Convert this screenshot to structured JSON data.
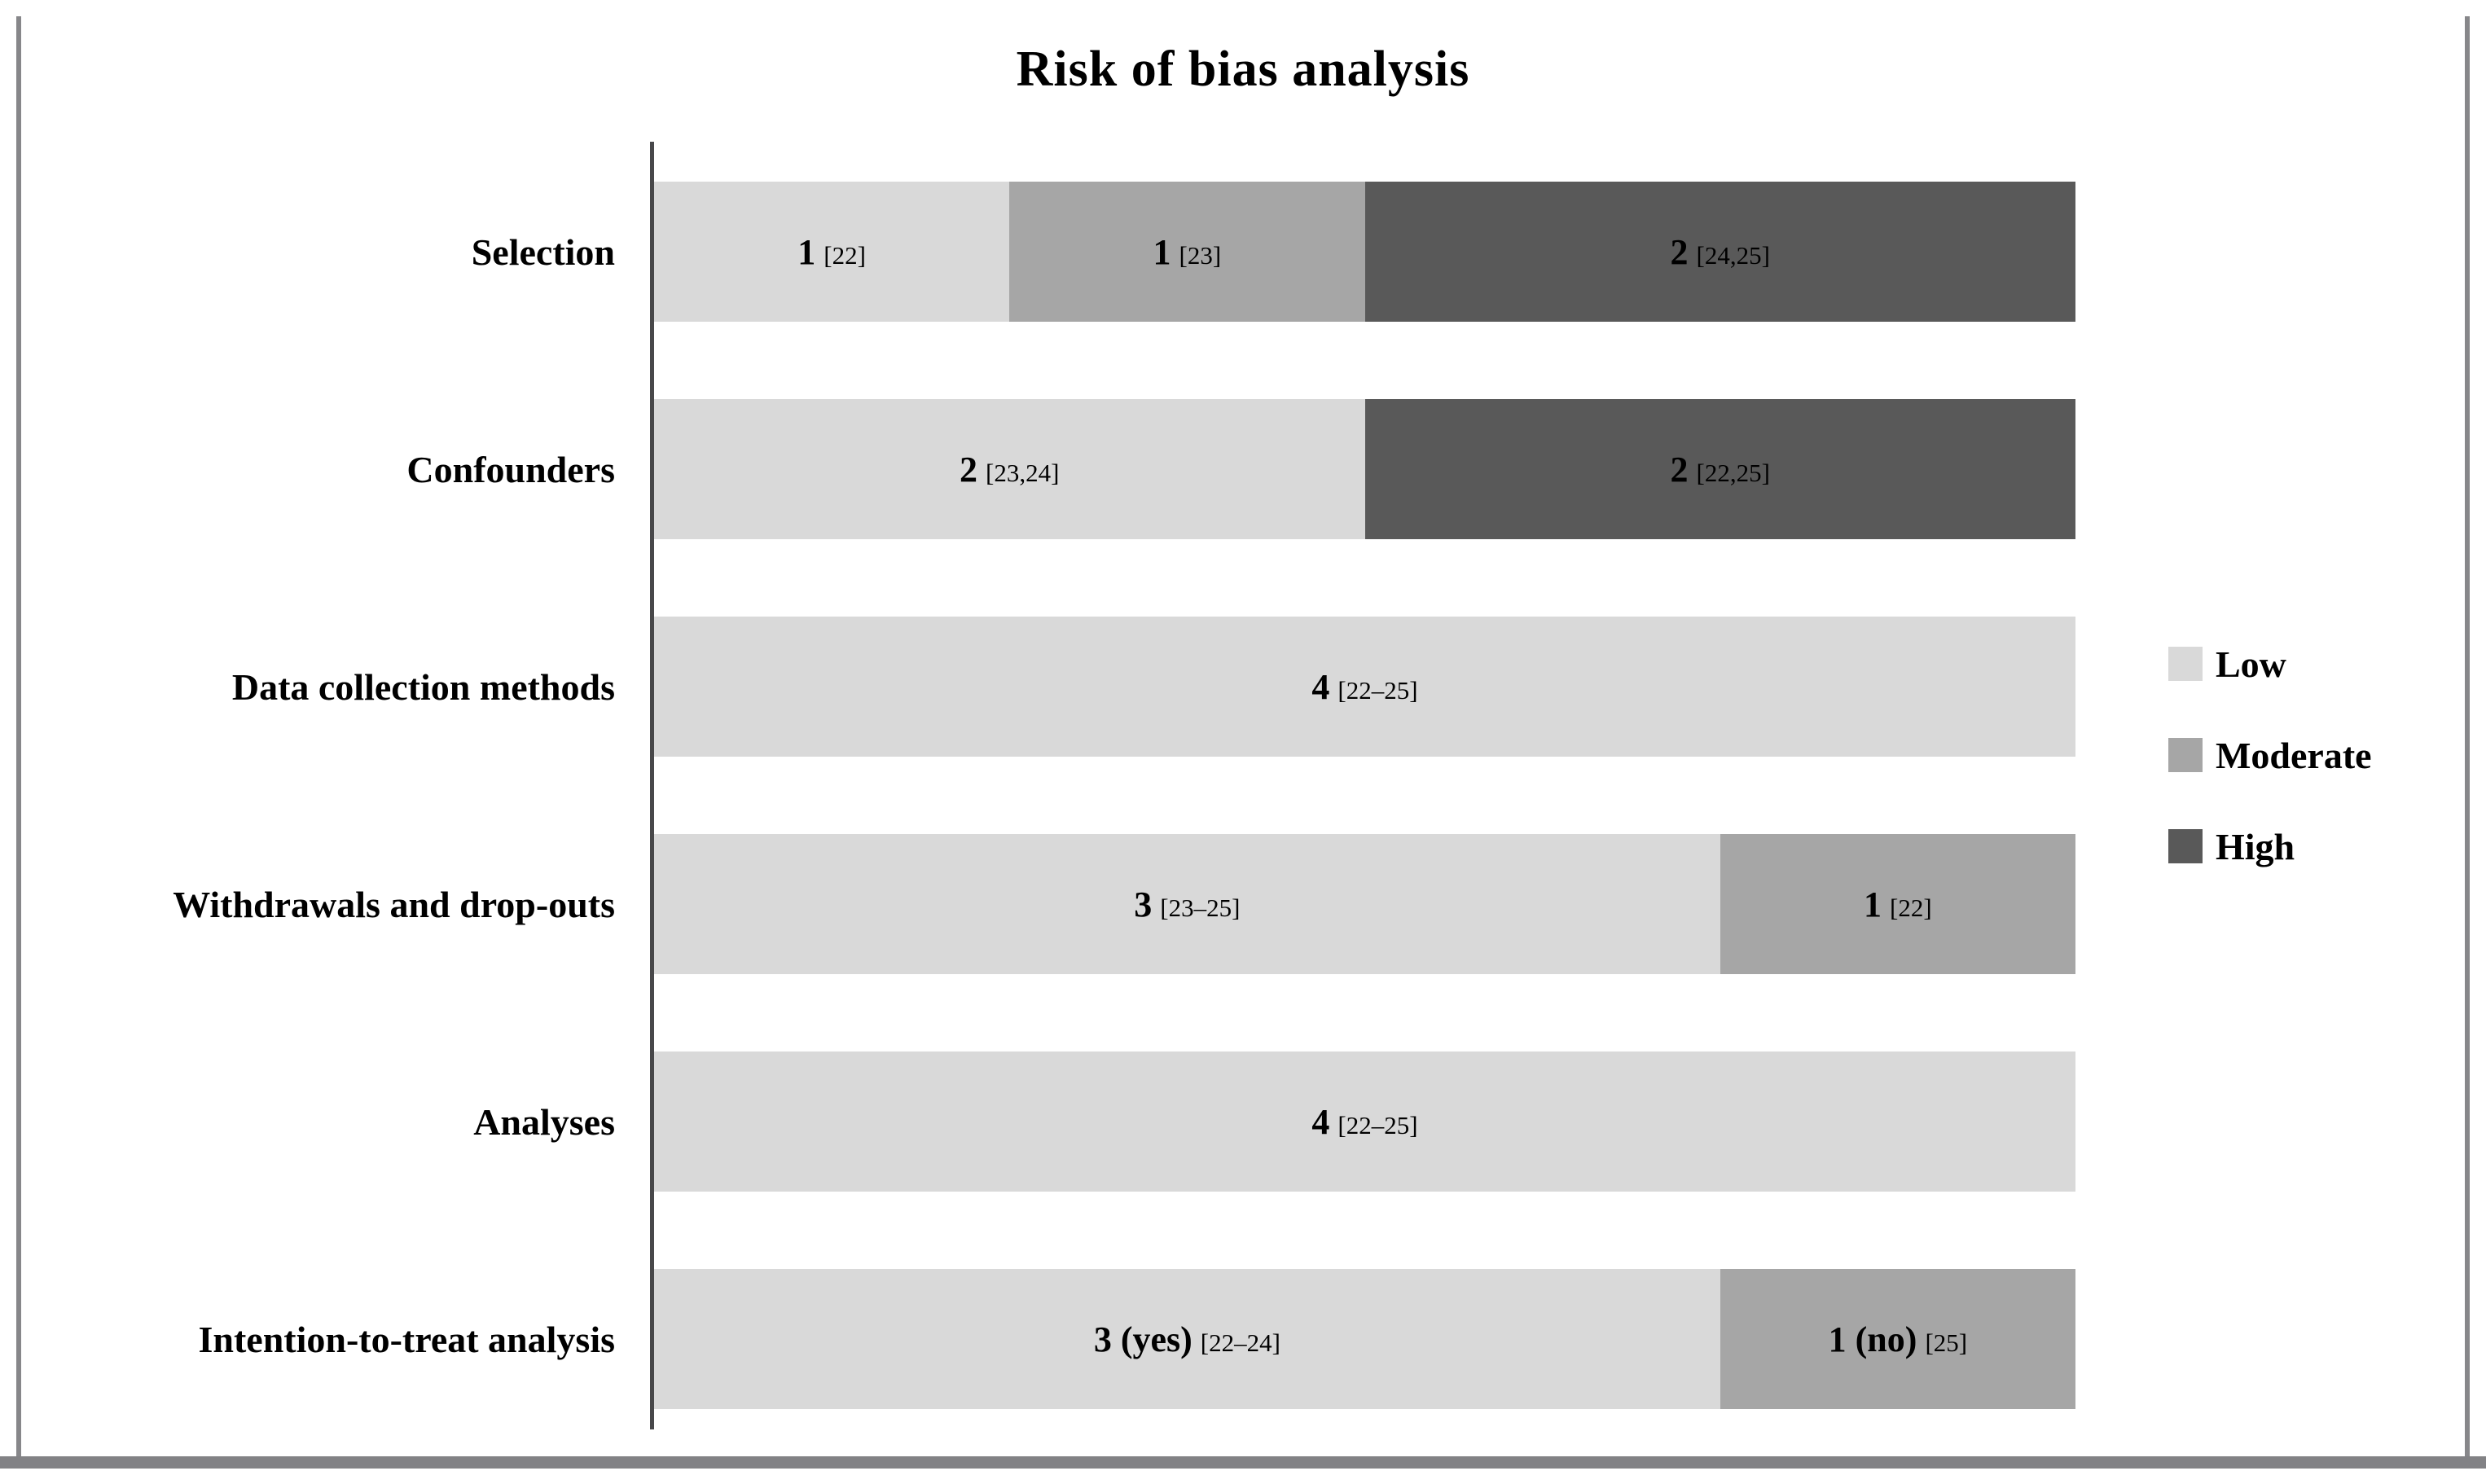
{
  "figure": {
    "title": "Risk of bias analysis"
  },
  "chart_data": {
    "type": "bar",
    "orientation": "horizontal-stacked",
    "title": "Risk of bias analysis",
    "x_axis": {
      "min": 0,
      "max": 4,
      "ticks_visible": false
    },
    "total_per_row": 4,
    "grid": false,
    "legend_position": "right",
    "categories": [
      "Selection",
      "Confounders",
      "Data collection methods",
      "Withdrawals and drop-outs",
      "Analyses",
      "Intention-to-treat analysis"
    ],
    "series": [
      {
        "name": "Low",
        "color": "#d9d9d9",
        "values": [
          1,
          2,
          4,
          3,
          4,
          3
        ]
      },
      {
        "name": "Moderate",
        "color": "#a6a6a6",
        "values": [
          1,
          0,
          0,
          1,
          0,
          1
        ]
      },
      {
        "name": "High",
        "color": "#595959",
        "values": [
          2,
          2,
          0,
          0,
          0,
          0
        ]
      }
    ],
    "rows": [
      {
        "label": "Selection",
        "segments": [
          {
            "series": "Low",
            "value": 1,
            "label": "1",
            "citation": "[22]"
          },
          {
            "series": "Moderate",
            "value": 1,
            "label": "1",
            "citation": "[23]"
          },
          {
            "series": "High",
            "value": 2,
            "label": "2",
            "citation": "[24,25]"
          }
        ]
      },
      {
        "label": "Confounders",
        "segments": [
          {
            "series": "Low",
            "value": 2,
            "label": "2",
            "citation": "[23,24]"
          },
          {
            "series": "High",
            "value": 2,
            "label": "2",
            "citation": "[22,25]"
          }
        ]
      },
      {
        "label": "Data collection methods",
        "segments": [
          {
            "series": "Low",
            "value": 4,
            "label": "4",
            "citation": "[22–25]"
          }
        ]
      },
      {
        "label": "Withdrawals and drop-outs",
        "segments": [
          {
            "series": "Low",
            "value": 3,
            "label": "3",
            "citation": "[23–25]"
          },
          {
            "series": "Moderate",
            "value": 1,
            "label": "1",
            "citation": "[22]"
          }
        ]
      },
      {
        "label": "Analyses",
        "segments": [
          {
            "series": "Low",
            "value": 4,
            "label": "4",
            "citation": "[22–25]"
          }
        ]
      },
      {
        "label": "Intention-to-treat analysis",
        "segments": [
          {
            "series": "Low",
            "value": 3,
            "label": "3 (yes)",
            "citation": "[22–24]"
          },
          {
            "series": "Moderate",
            "value": 1,
            "label": "1 (no)",
            "citation": "[25]"
          }
        ]
      }
    ],
    "legend": {
      "position": "right",
      "entries": [
        {
          "label": "Low",
          "color": "#d9d9d9"
        },
        {
          "label": "Moderate",
          "color": "#a6a6a6"
        },
        {
          "label": "High",
          "color": "#595959"
        }
      ]
    }
  },
  "colors": {
    "low": "#d9d9d9",
    "moderate": "#a6a6a6",
    "high": "#595959",
    "axis_line": "#48484a",
    "frame_border": "#87878a",
    "text": "#000000",
    "background": "#ffffff"
  }
}
